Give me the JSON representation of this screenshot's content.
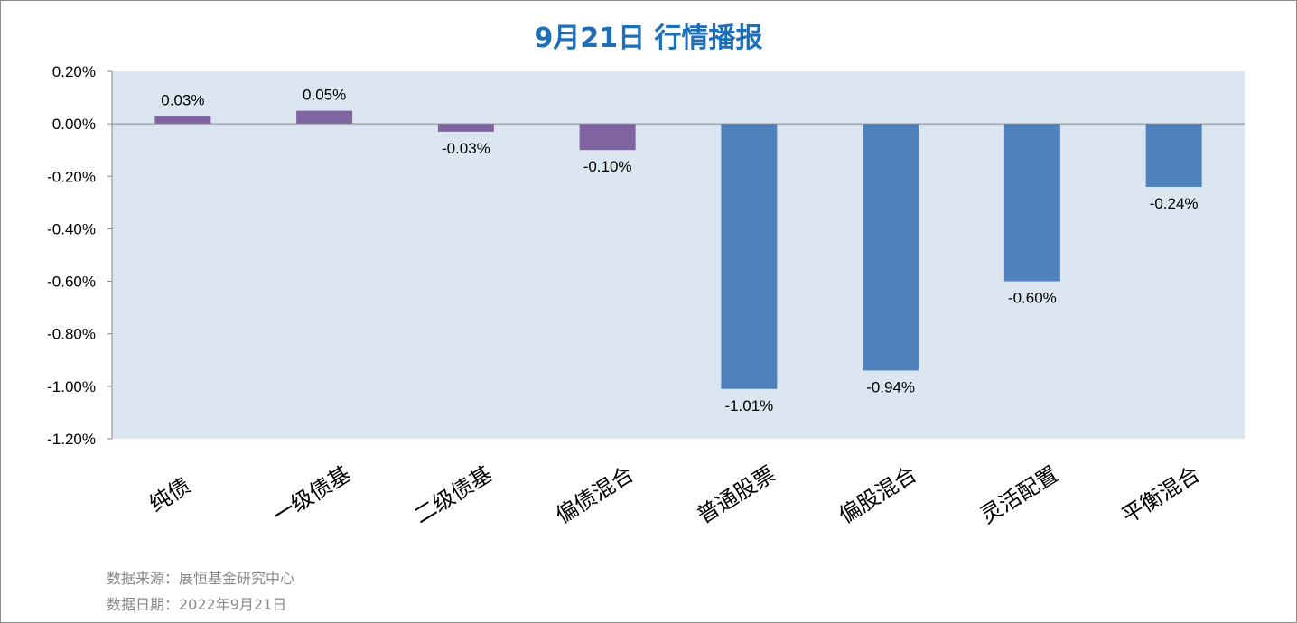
{
  "chart_data": {
    "type": "bar",
    "title": "9月21日  行情播报",
    "categories": [
      "纯债",
      "一级债基",
      "二级债基",
      "偏债混合",
      "普通股票",
      "偏股混合",
      "灵活配置",
      "平衡混合"
    ],
    "values": [
      0.03,
      0.05,
      -0.03,
      -0.1,
      -1.01,
      -0.94,
      -0.6,
      -0.24
    ],
    "value_labels": [
      "0.03%",
      "0.05%",
      "-0.03%",
      "-0.10%",
      "-1.01%",
      "-0.94%",
      "-0.60%",
      "-0.24%"
    ],
    "ylim": [
      -1.2,
      0.2
    ],
    "yticks": [
      0.2,
      0.0,
      -0.2,
      -0.4,
      -0.6,
      -0.8,
      -1.0,
      -1.2
    ],
    "ytick_labels": [
      "0.20%",
      "0.00%",
      "-0.20%",
      "-0.40%",
      "-0.60%",
      "-0.80%",
      "-1.00%",
      "-1.20%"
    ],
    "bar_colors": [
      "#8064a2",
      "#8064a2",
      "#8064a2",
      "#8064a2",
      "#4f81bd",
      "#4f81bd",
      "#4f81bd",
      "#4f81bd"
    ],
    "plot_background": "#dce6f1",
    "grid": false,
    "legend": "none"
  },
  "footer": {
    "source": "数据来源：展恒基金研究中心",
    "date": "数据日期：2022年9月21日"
  }
}
